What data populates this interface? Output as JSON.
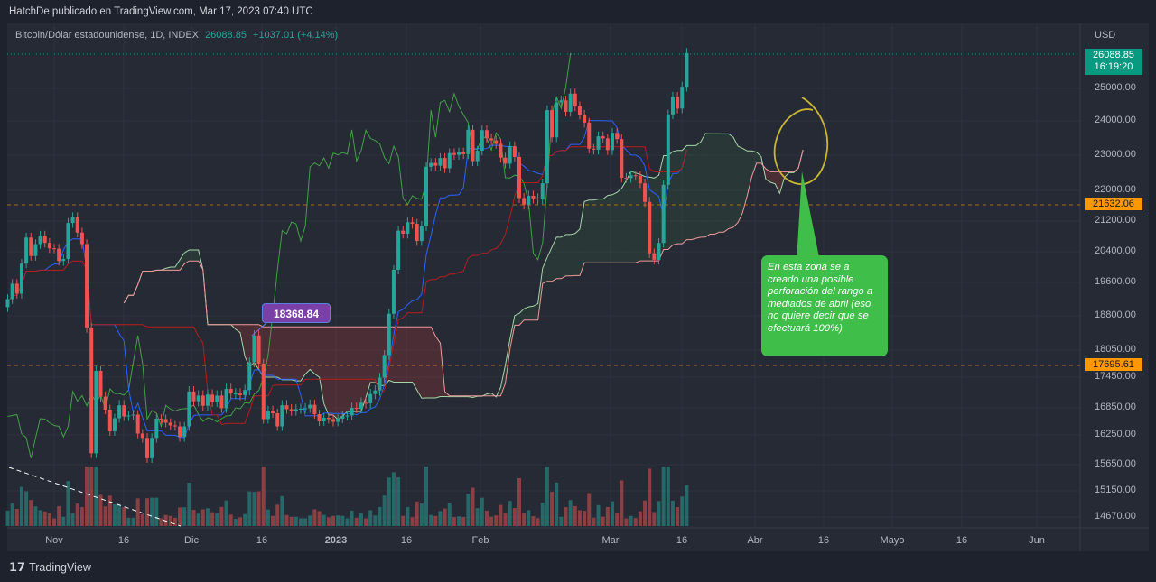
{
  "header": {
    "published": "HatchDe publicado en TradingView.com, Mar 17, 2023 07:40 UTC"
  },
  "legend": {
    "symbol": "Bitcoin/Dólar estadounidense, 1D, INDEX",
    "last": "26088.85",
    "change": "+1037.01 (+4.14%)"
  },
  "price_axis": {
    "currency": "USD",
    "labels": [
      "25000.00",
      "24000.00",
      "23000.00",
      "22000.00",
      "21200.00",
      "20400.00",
      "19600.00",
      "18800.00",
      "18050.00",
      "17450.00",
      "16850.00",
      "16250.00",
      "15650.00",
      "15150.00",
      "14670.00"
    ],
    "current_price": "26088.85",
    "countdown": "16:19:20",
    "tag_upper": "21632.06",
    "tag_lower": "17695.61"
  },
  "time_axis": {
    "labels": [
      "Nov",
      "16",
      "Dic",
      "16",
      "2023",
      "16",
      "Feb",
      "Mar",
      "16",
      "Abr",
      "16",
      "Mayo",
      "16",
      "Jun"
    ]
  },
  "annotations": {
    "price_label": "18368.84",
    "callout": "En esta zona se a creado una posible perforación del rango a mediados de abril (eso no quiere decir que  se efectuará 100%)"
  },
  "footer": {
    "brand": "TradingView"
  },
  "colors": {
    "up": "#26a69a",
    "down": "#ef5350",
    "tenkan": "#2962ff",
    "kijun": "#b71c1c",
    "chikou": "#43a047",
    "spanA": "#a5d6a7",
    "spanB": "#ef9a9a",
    "current": "#089981",
    "tag": "#ff9800",
    "callout": "#3fbf4a"
  },
  "chart_data": {
    "type": "candlestick",
    "title": "Bitcoin/Dólar estadounidense, 1D, INDEX",
    "start_date": "2022-10-22",
    "end_date": "2023-03-17",
    "ylabel": "USD",
    "ylim": [
      14400,
      26500
    ],
    "indicators": [
      "Ichimoku Cloud",
      "Volume"
    ],
    "closes": [
      19200,
      19570,
      19330,
      20090,
      20770,
      20290,
      20600,
      20820,
      20630,
      20490,
      20480,
      20160,
      20210,
      21150,
      21300,
      20900,
      20600,
      18540,
      15880,
      17590,
      17070,
      16810,
      16330,
      16620,
      16900,
      16660,
      16680,
      16700,
      16280,
      16190,
      15780,
      16190,
      16610,
      16600,
      16520,
      16460,
      16440,
      16210,
      16440,
      17170,
      16980,
      17090,
      16890,
      17110,
      16970,
      17090,
      16840,
      17220,
      17130,
      17130,
      17100,
      17200,
      17780,
      18370,
      17750,
      16600,
      16790,
      16730,
      16440,
      16900,
      16820,
      16780,
      16820,
      16830,
      16840,
      16910,
      16710,
      16550,
      16630,
      16600,
      16540,
      16610,
      16670,
      16680,
      16850,
      16830,
      16950,
      16940,
      17120,
      17190,
      17440,
      17940,
      18850,
      19930,
      20950,
      20870,
      21170,
      21130,
      20680,
      21070,
      22670,
      22780,
      22700,
      22920,
      22630,
      23060,
      23010,
      23080,
      23030,
      23740,
      22830,
      23130,
      23730,
      23490,
      23430,
      23330,
      22930,
      22760,
      23260,
      22950,
      21800,
      21630,
      21860,
      21790,
      21770,
      22200,
      24330,
      23520,
      24570,
      24630,
      24280,
      24840,
      24450,
      24190,
      23950,
      23190,
      23160,
      23550,
      23490,
      23150,
      23650,
      23470,
      22360,
      22350,
      22430,
      22410,
      22200,
      21700,
      20360,
      20190,
      20630,
      22160,
      24200,
      24740,
      24380,
      25050,
      26088.85
    ]
  }
}
